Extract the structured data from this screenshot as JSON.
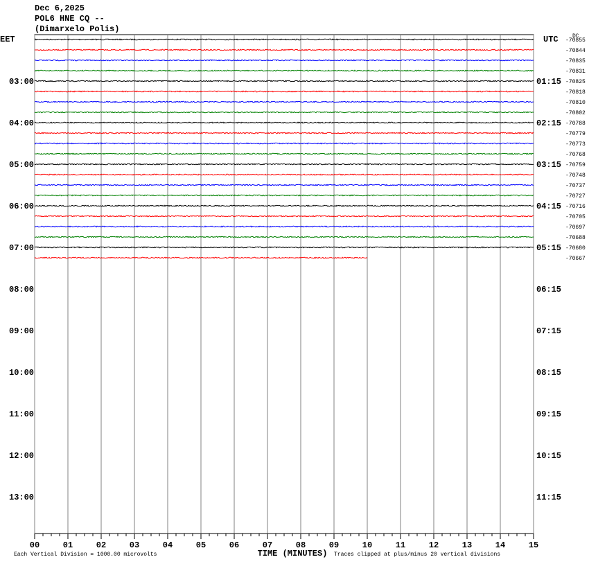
{
  "chart_data": {
    "type": "helicorder",
    "title_lines": [
      "Dec 6,2025",
      "POL6 HNE CQ --",
      "(Dimarxelo Polis)"
    ],
    "left_zone": "EET",
    "right_zone": "UTC",
    "dc_label": "DC",
    "left_times": [
      "03:00",
      "04:00",
      "05:00",
      "06:00",
      "07:00",
      "08:00",
      "09:00",
      "10:00",
      "11:00",
      "12:00",
      "13:00"
    ],
    "right_times": [
      "01:15",
      "02:15",
      "03:15",
      "04:15",
      "05:15",
      "06:15",
      "07:15",
      "08:15",
      "09:15",
      "10:15",
      "11:15"
    ],
    "row_values": [
      -70855,
      -70844,
      -70835,
      -70831,
      -70825,
      -70818,
      -70810,
      -70802,
      -70788,
      -70779,
      -70773,
      -70768,
      -70759,
      -70748,
      -70737,
      -70727,
      -70716,
      -70705,
      -70697,
      -70688,
      -70680,
      -70667
    ],
    "row_colors": [
      "#000000",
      "#ff0000",
      "#0000ff",
      "#008000"
    ],
    "last_trace_end": 10,
    "xlabel": "TIME (MINUTES)",
    "xlim": [
      0,
      15
    ],
    "xticks": [
      {
        "value": 0,
        "label": "00"
      },
      {
        "value": 1,
        "label": "01"
      },
      {
        "value": 2,
        "label": "02"
      },
      {
        "value": 3,
        "label": "03"
      },
      {
        "value": 4,
        "label": "04"
      },
      {
        "value": 5,
        "label": "05"
      },
      {
        "value": 6,
        "label": "06"
      },
      {
        "value": 7,
        "label": "07"
      },
      {
        "value": 8,
        "label": "08"
      },
      {
        "value": 9,
        "label": "09"
      },
      10,
      11,
      12,
      13,
      14,
      15
    ],
    "footnote_left": "Each Vertical Division = 1000.00 microvolts",
    "footnote_right": "Traces clipped at plus/minus 20 vertical divisions"
  }
}
